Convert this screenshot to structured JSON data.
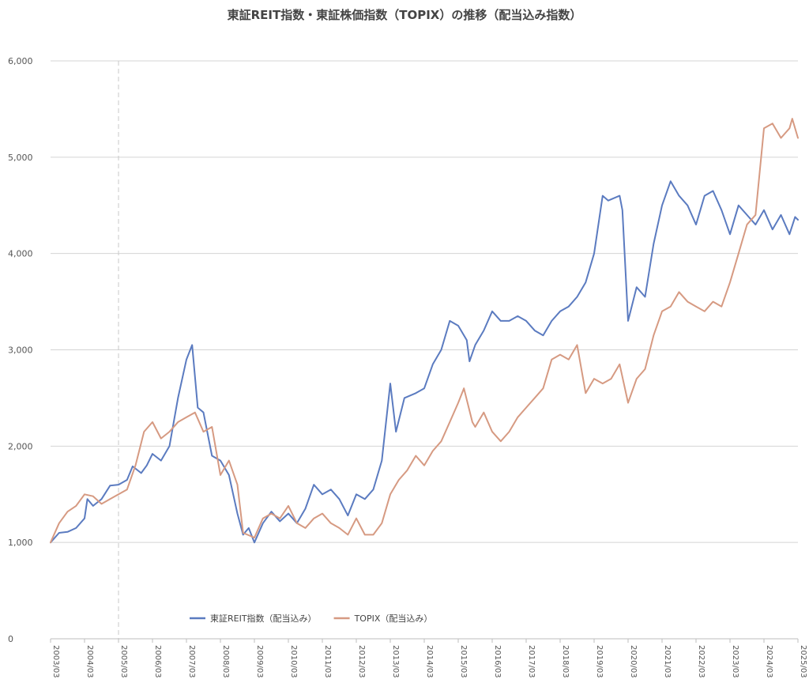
{
  "chart_data": {
    "type": "line",
    "title": "東証REIT指数・東証株価指数（TOPIX）の推移（配当込み指数）",
    "xlabel": "",
    "ylabel": "",
    "ylim": [
      0,
      6000
    ],
    "yticks": [
      0,
      1000,
      2000,
      3000,
      4000,
      5000,
      6000
    ],
    "ytick_labels": [
      "0",
      "1,000",
      "2,000",
      "3,000",
      "4,000",
      "5,000",
      "6,000"
    ],
    "xlim": [
      "2003/03",
      "2025/03"
    ],
    "xtick_labels": [
      "2003/03",
      "2004/03",
      "2005/03",
      "2006/03",
      "2007/03",
      "2008/03",
      "2009/03",
      "2010/03",
      "2011/03",
      "2012/03",
      "2013/03",
      "2014/03",
      "2015/03",
      "2016/03",
      "2017/03",
      "2018/03",
      "2019/03",
      "2020/03",
      "2021/03",
      "2022/03",
      "2023/03",
      "2024/03",
      "2025/03"
    ],
    "grid": true,
    "reference_line": {
      "x": "2005/03",
      "style": "dashed"
    },
    "legend_position": "bottom",
    "series": [
      {
        "name": "東証REIT指数（配当込み）",
        "color": "#5b7bc0",
        "points": [
          [
            "2003/03",
            1000
          ],
          [
            "2003/06",
            1100
          ],
          [
            "2003/09",
            1110
          ],
          [
            "2003/12",
            1150
          ],
          [
            "2004/03",
            1250
          ],
          [
            "2004/04",
            1450
          ],
          [
            "2004/06",
            1380
          ],
          [
            "2004/09",
            1450
          ],
          [
            "2004/12",
            1590
          ],
          [
            "2005/03",
            1600
          ],
          [
            "2005/06",
            1650
          ],
          [
            "2005/08",
            1790
          ],
          [
            "2005/11",
            1720
          ],
          [
            "2006/01",
            1800
          ],
          [
            "2006/03",
            1920
          ],
          [
            "2006/06",
            1850
          ],
          [
            "2006/09",
            2000
          ],
          [
            "2006/12",
            2500
          ],
          [
            "2007/03",
            2900
          ],
          [
            "2007/05",
            3050
          ],
          [
            "2007/07",
            2400
          ],
          [
            "2007/09",
            2350
          ],
          [
            "2007/12",
            1900
          ],
          [
            "2008/03",
            1850
          ],
          [
            "2008/06",
            1700
          ],
          [
            "2008/09",
            1300
          ],
          [
            "2008/11",
            1080
          ],
          [
            "2009/01",
            1150
          ],
          [
            "2009/03",
            1000
          ],
          [
            "2009/06",
            1200
          ],
          [
            "2009/09",
            1320
          ],
          [
            "2009/12",
            1220
          ],
          [
            "2010/03",
            1300
          ],
          [
            "2010/06",
            1200
          ],
          [
            "2010/09",
            1350
          ],
          [
            "2010/12",
            1600
          ],
          [
            "2011/03",
            1500
          ],
          [
            "2011/06",
            1550
          ],
          [
            "2011/09",
            1450
          ],
          [
            "2011/12",
            1280
          ],
          [
            "2012/03",
            1500
          ],
          [
            "2012/06",
            1450
          ],
          [
            "2012/09",
            1550
          ],
          [
            "2012/12",
            1850
          ],
          [
            "2013/03",
            2650
          ],
          [
            "2013/05",
            2150
          ],
          [
            "2013/08",
            2500
          ],
          [
            "2013/12",
            2550
          ],
          [
            "2014/03",
            2600
          ],
          [
            "2014/06",
            2850
          ],
          [
            "2014/09",
            3000
          ],
          [
            "2014/12",
            3300
          ],
          [
            "2015/03",
            3250
          ],
          [
            "2015/06",
            3100
          ],
          [
            "2015/07",
            2880
          ],
          [
            "2015/09",
            3050
          ],
          [
            "2015/12",
            3200
          ],
          [
            "2016/03",
            3400
          ],
          [
            "2016/06",
            3300
          ],
          [
            "2016/09",
            3300
          ],
          [
            "2016/12",
            3350
          ],
          [
            "2017/03",
            3300
          ],
          [
            "2017/06",
            3200
          ],
          [
            "2017/09",
            3150
          ],
          [
            "2017/12",
            3300
          ],
          [
            "2018/03",
            3400
          ],
          [
            "2018/06",
            3450
          ],
          [
            "2018/09",
            3550
          ],
          [
            "2018/12",
            3700
          ],
          [
            "2019/03",
            4000
          ],
          [
            "2019/06",
            4600
          ],
          [
            "2019/08",
            4550
          ],
          [
            "2019/12",
            4600
          ],
          [
            "2020/01",
            4450
          ],
          [
            "2020/03",
            3300
          ],
          [
            "2020/06",
            3650
          ],
          [
            "2020/09",
            3550
          ],
          [
            "2020/12",
            4100
          ],
          [
            "2021/03",
            4500
          ],
          [
            "2021/06",
            4750
          ],
          [
            "2021/09",
            4600
          ],
          [
            "2021/12",
            4500
          ],
          [
            "2022/03",
            4300
          ],
          [
            "2022/06",
            4600
          ],
          [
            "2022/09",
            4650
          ],
          [
            "2022/12",
            4450
          ],
          [
            "2023/03",
            4200
          ],
          [
            "2023/06",
            4500
          ],
          [
            "2023/09",
            4400
          ],
          [
            "2023/12",
            4300
          ],
          [
            "2024/03",
            4450
          ],
          [
            "2024/06",
            4250
          ],
          [
            "2024/09",
            4400
          ],
          [
            "2024/12",
            4200
          ],
          [
            "2025/02",
            4380
          ],
          [
            "2025/03",
            4350
          ]
        ]
      },
      {
        "name": "TOPIX（配当込み）",
        "color": "#d69a82",
        "points": [
          [
            "2003/03",
            1000
          ],
          [
            "2003/06",
            1200
          ],
          [
            "2003/09",
            1320
          ],
          [
            "2003/12",
            1380
          ],
          [
            "2004/03",
            1500
          ],
          [
            "2004/06",
            1480
          ],
          [
            "2004/09",
            1400
          ],
          [
            "2004/12",
            1450
          ],
          [
            "2005/03",
            1500
          ],
          [
            "2005/06",
            1550
          ],
          [
            "2005/09",
            1800
          ],
          [
            "2005/12",
            2150
          ],
          [
            "2006/03",
            2250
          ],
          [
            "2006/06",
            2080
          ],
          [
            "2006/09",
            2150
          ],
          [
            "2006/12",
            2250
          ],
          [
            "2007/03",
            2300
          ],
          [
            "2007/06",
            2350
          ],
          [
            "2007/09",
            2150
          ],
          [
            "2007/12",
            2200
          ],
          [
            "2008/03",
            1700
          ],
          [
            "2008/06",
            1850
          ],
          [
            "2008/09",
            1600
          ],
          [
            "2008/11",
            1100
          ],
          [
            "2009/03",
            1050
          ],
          [
            "2009/06",
            1250
          ],
          [
            "2009/09",
            1300
          ],
          [
            "2009/12",
            1250
          ],
          [
            "2010/03",
            1380
          ],
          [
            "2010/06",
            1200
          ],
          [
            "2010/09",
            1150
          ],
          [
            "2010/12",
            1250
          ],
          [
            "2011/03",
            1300
          ],
          [
            "2011/06",
            1200
          ],
          [
            "2011/09",
            1150
          ],
          [
            "2011/12",
            1080
          ],
          [
            "2012/03",
            1250
          ],
          [
            "2012/06",
            1080
          ],
          [
            "2012/09",
            1080
          ],
          [
            "2012/12",
            1200
          ],
          [
            "2013/03",
            1500
          ],
          [
            "2013/06",
            1650
          ],
          [
            "2013/09",
            1750
          ],
          [
            "2013/12",
            1900
          ],
          [
            "2014/03",
            1800
          ],
          [
            "2014/06",
            1950
          ],
          [
            "2014/09",
            2050
          ],
          [
            "2014/12",
            2250
          ],
          [
            "2015/03",
            2450
          ],
          [
            "2015/05",
            2600
          ],
          [
            "2015/08",
            2250
          ],
          [
            "2015/09",
            2200
          ],
          [
            "2015/12",
            2350
          ],
          [
            "2016/03",
            2150
          ],
          [
            "2016/06",
            2050
          ],
          [
            "2016/09",
            2150
          ],
          [
            "2016/12",
            2300
          ],
          [
            "2017/03",
            2400
          ],
          [
            "2017/06",
            2500
          ],
          [
            "2017/09",
            2600
          ],
          [
            "2017/12",
            2900
          ],
          [
            "2018/03",
            2950
          ],
          [
            "2018/06",
            2900
          ],
          [
            "2018/09",
            3050
          ],
          [
            "2018/12",
            2550
          ],
          [
            "2019/03",
            2700
          ],
          [
            "2019/06",
            2650
          ],
          [
            "2019/09",
            2700
          ],
          [
            "2019/12",
            2850
          ],
          [
            "2020/03",
            2450
          ],
          [
            "2020/06",
            2700
          ],
          [
            "2020/09",
            2800
          ],
          [
            "2020/12",
            3150
          ],
          [
            "2021/03",
            3400
          ],
          [
            "2021/06",
            3450
          ],
          [
            "2021/09",
            3600
          ],
          [
            "2021/12",
            3500
          ],
          [
            "2022/03",
            3450
          ],
          [
            "2022/06",
            3400
          ],
          [
            "2022/09",
            3500
          ],
          [
            "2022/12",
            3450
          ],
          [
            "2023/03",
            3700
          ],
          [
            "2023/06",
            4000
          ],
          [
            "2023/09",
            4300
          ],
          [
            "2023/12",
            4400
          ],
          [
            "2024/03",
            5300
          ],
          [
            "2024/06",
            5350
          ],
          [
            "2024/09",
            5200
          ],
          [
            "2024/12",
            5300
          ],
          [
            "2025/01",
            5400
          ],
          [
            "2025/03",
            5200
          ]
        ]
      }
    ]
  }
}
